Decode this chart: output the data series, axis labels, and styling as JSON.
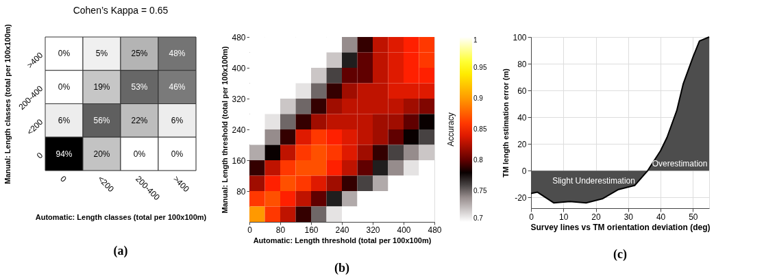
{
  "chart_data": [
    {
      "type": "heatmap",
      "title": "Cohen’s Kappa = 0.65",
      "xlabel": "Automatic: Length classes (total per 100x100m)",
      "ylabel": "Manual: Length classes (total per 100x100m)",
      "annotations": [
        "(a)"
      ],
      "categories": [
        "0",
        "<200",
        "200-400",
        ">400"
      ],
      "y_categories": [
        ">400",
        "200-400",
        "<200",
        "0"
      ],
      "cells": [
        [
          0,
          5,
          25,
          48
        ],
        [
          0,
          19,
          53,
          46
        ],
        [
          6,
          56,
          22,
          6
        ],
        [
          94,
          20,
          0,
          0
        ]
      ],
      "cell_labels": [
        [
          "0%",
          "5%",
          "25%",
          "48%"
        ],
        [
          "0%",
          "19%",
          "53%",
          "46%"
        ],
        [
          "6%",
          "56%",
          "22%",
          "6%"
        ],
        [
          "94%",
          "20%",
          "0%",
          "0%"
        ]
      ]
    },
    {
      "type": "heatmap",
      "xlabel": "Automatic: Length threshold (total per 100x100m)",
      "ylabel": "Manual: Length threshold (total per 100x100m)",
      "clabel": "Accuracy",
      "annotations": [
        "(b)"
      ],
      "xlim": [
        0,
        480
      ],
      "xticks": [
        0,
        80,
        160,
        240,
        320,
        400,
        480
      ],
      "ylim": [
        0,
        480
      ],
      "yticks": [
        80,
        160,
        240,
        320,
        400,
        480
      ],
      "clim": [
        0.7,
        1
      ],
      "cticks": [
        0.7,
        0.75,
        0.8,
        0.85,
        0.9,
        0.95,
        1
      ],
      "cells": [
        [
          0.7,
          0.7,
          0.7,
          0.7,
          0.7,
          0.7,
          0.74,
          0.79,
          0.83,
          0.84,
          0.85,
          0.86
        ],
        [
          0.7,
          0.7,
          0.7,
          0.7,
          0.7,
          0.72,
          0.77,
          0.8,
          0.83,
          0.84,
          0.85,
          0.86
        ],
        [
          0.7,
          0.7,
          0.7,
          0.7,
          0.72,
          0.76,
          0.8,
          0.8,
          0.83,
          0.84,
          0.85,
          0.85
        ],
        [
          0.7,
          0.7,
          0.7,
          0.71,
          0.75,
          0.79,
          0.82,
          0.83,
          0.83,
          0.84,
          0.84,
          0.84
        ],
        [
          0.7,
          0.7,
          0.72,
          0.75,
          0.79,
          0.82,
          0.83,
          0.83,
          0.83,
          0.83,
          0.82,
          0.81
        ],
        [
          0.7,
          0.71,
          0.75,
          0.79,
          0.82,
          0.83,
          0.83,
          0.83,
          0.82,
          0.82,
          0.8,
          0.78
        ],
        [
          0.7,
          0.74,
          0.79,
          0.84,
          0.86,
          0.85,
          0.84,
          0.83,
          0.82,
          0.8,
          0.78,
          0.76
        ],
        [
          0.73,
          0.78,
          0.83,
          0.86,
          0.87,
          0.86,
          0.84,
          0.82,
          0.79,
          0.76,
          0.74,
          0.72
        ],
        [
          0.79,
          0.83,
          0.86,
          0.87,
          0.87,
          0.85,
          0.83,
          0.8,
          0.77,
          0.74,
          0.71,
          0.7
        ],
        [
          0.82,
          0.85,
          0.87,
          0.86,
          0.84,
          0.82,
          0.79,
          0.76,
          0.73,
          0.7,
          0.7,
          0.7
        ],
        [
          0.86,
          0.87,
          0.85,
          0.83,
          0.8,
          0.77,
          0.73,
          0.7,
          0.7,
          0.7,
          0.7,
          0.7
        ],
        [
          0.9,
          0.86,
          0.83,
          0.79,
          0.75,
          0.71,
          0.7,
          0.7,
          0.7,
          0.7,
          0.7,
          0.7
        ]
      ]
    },
    {
      "type": "area",
      "xlabel": "Survey lines vs TM orientation deviation (deg)",
      "ylabel": "TM length estimation error (m)",
      "grid": true,
      "annotations": [
        "Slight Underestimation",
        "Overestimation",
        "(c)"
      ],
      "x": [
        0,
        2,
        7,
        12,
        17,
        22,
        27,
        32,
        36,
        40,
        42,
        45,
        47,
        50,
        52,
        55
      ],
      "series": [
        {
          "color": "#4d4d4d",
          "values": [
            -17,
            -16,
            -24,
            -23,
            -24,
            -21,
            -14,
            -11,
            0,
            15,
            25,
            45,
            65,
            85,
            97,
            100
          ]
        }
      ],
      "xlim": [
        0,
        55
      ],
      "xticks": [
        0,
        10,
        20,
        30,
        40,
        50
      ],
      "ylim": [
        -28,
        100
      ],
      "yticks": [
        -20,
        0,
        20,
        40,
        60,
        80,
        100
      ]
    }
  ]
}
